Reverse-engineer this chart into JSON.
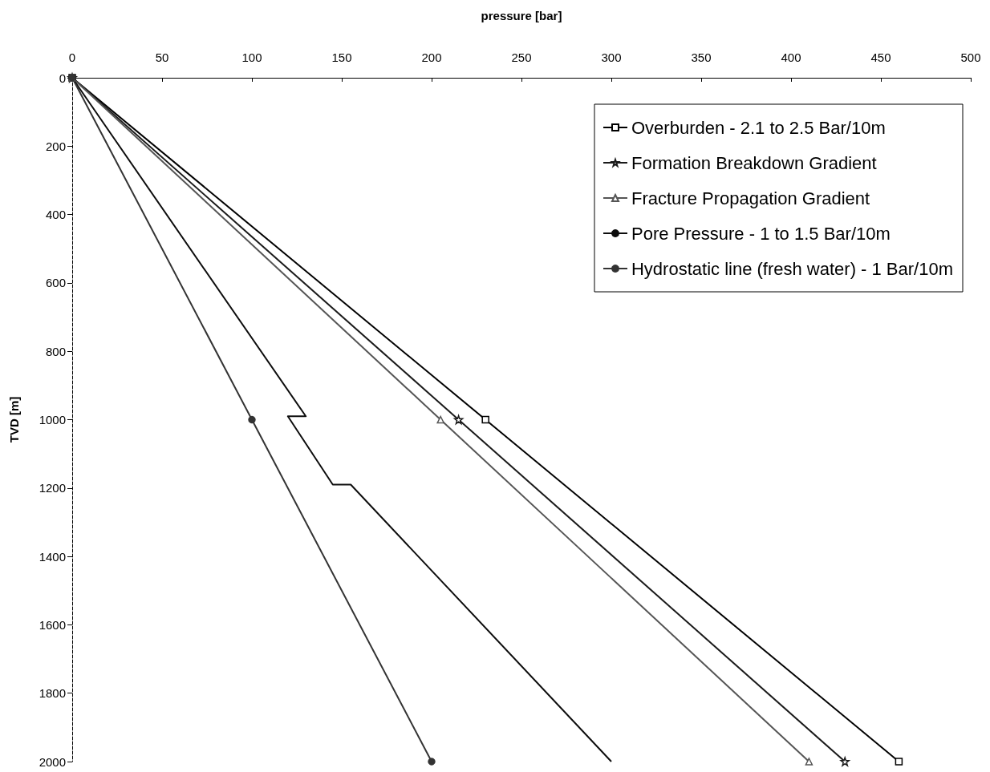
{
  "chart_data": {
    "type": "line",
    "xlabel": "pressure [bar]",
    "ylabel": "TVD [m]",
    "xlim": [
      0,
      500
    ],
    "xticks": [
      0,
      50,
      100,
      150,
      200,
      250,
      300,
      350,
      400,
      450,
      500
    ],
    "ylim": [
      2000,
      0
    ],
    "yticks": [
      0,
      200,
      400,
      600,
      800,
      1000,
      1200,
      1400,
      1600,
      1800,
      2000
    ],
    "grid": false,
    "legend": "top right",
    "series": [
      {
        "name": "Overburden - 2.1 to 2.5 Bar/10m",
        "color": "#000000",
        "marker": "square",
        "x": [
          0,
          230,
          460
        ],
        "values": [
          0,
          1000,
          2000
        ]
      },
      {
        "name": "Formation Breakdown Gradient",
        "color": "#1a1a1a",
        "marker": "star",
        "x": [
          0,
          215,
          430
        ],
        "values": [
          0,
          1000,
          2000
        ]
      },
      {
        "name": "Fracture Propagation Gradient",
        "color": "#555555",
        "marker": "triangle",
        "x": [
          0,
          205,
          410
        ],
        "values": [
          0,
          1000,
          2000
        ]
      },
      {
        "name": "Pore Pressure - 1 to 1.5 Bar/10m",
        "color": "#0d0d0d",
        "marker": "none",
        "x": [
          0,
          130,
          120,
          145,
          155,
          300
        ],
        "values": [
          0,
          990,
          990,
          1190,
          1190,
          2000
        ]
      },
      {
        "name": "Hydrostatic line (fresh water) - 1 Bar/10m",
        "color": "#333333",
        "marker": "circle",
        "x": [
          0,
          100,
          200
        ],
        "values": [
          0,
          1000,
          2000
        ]
      }
    ]
  }
}
